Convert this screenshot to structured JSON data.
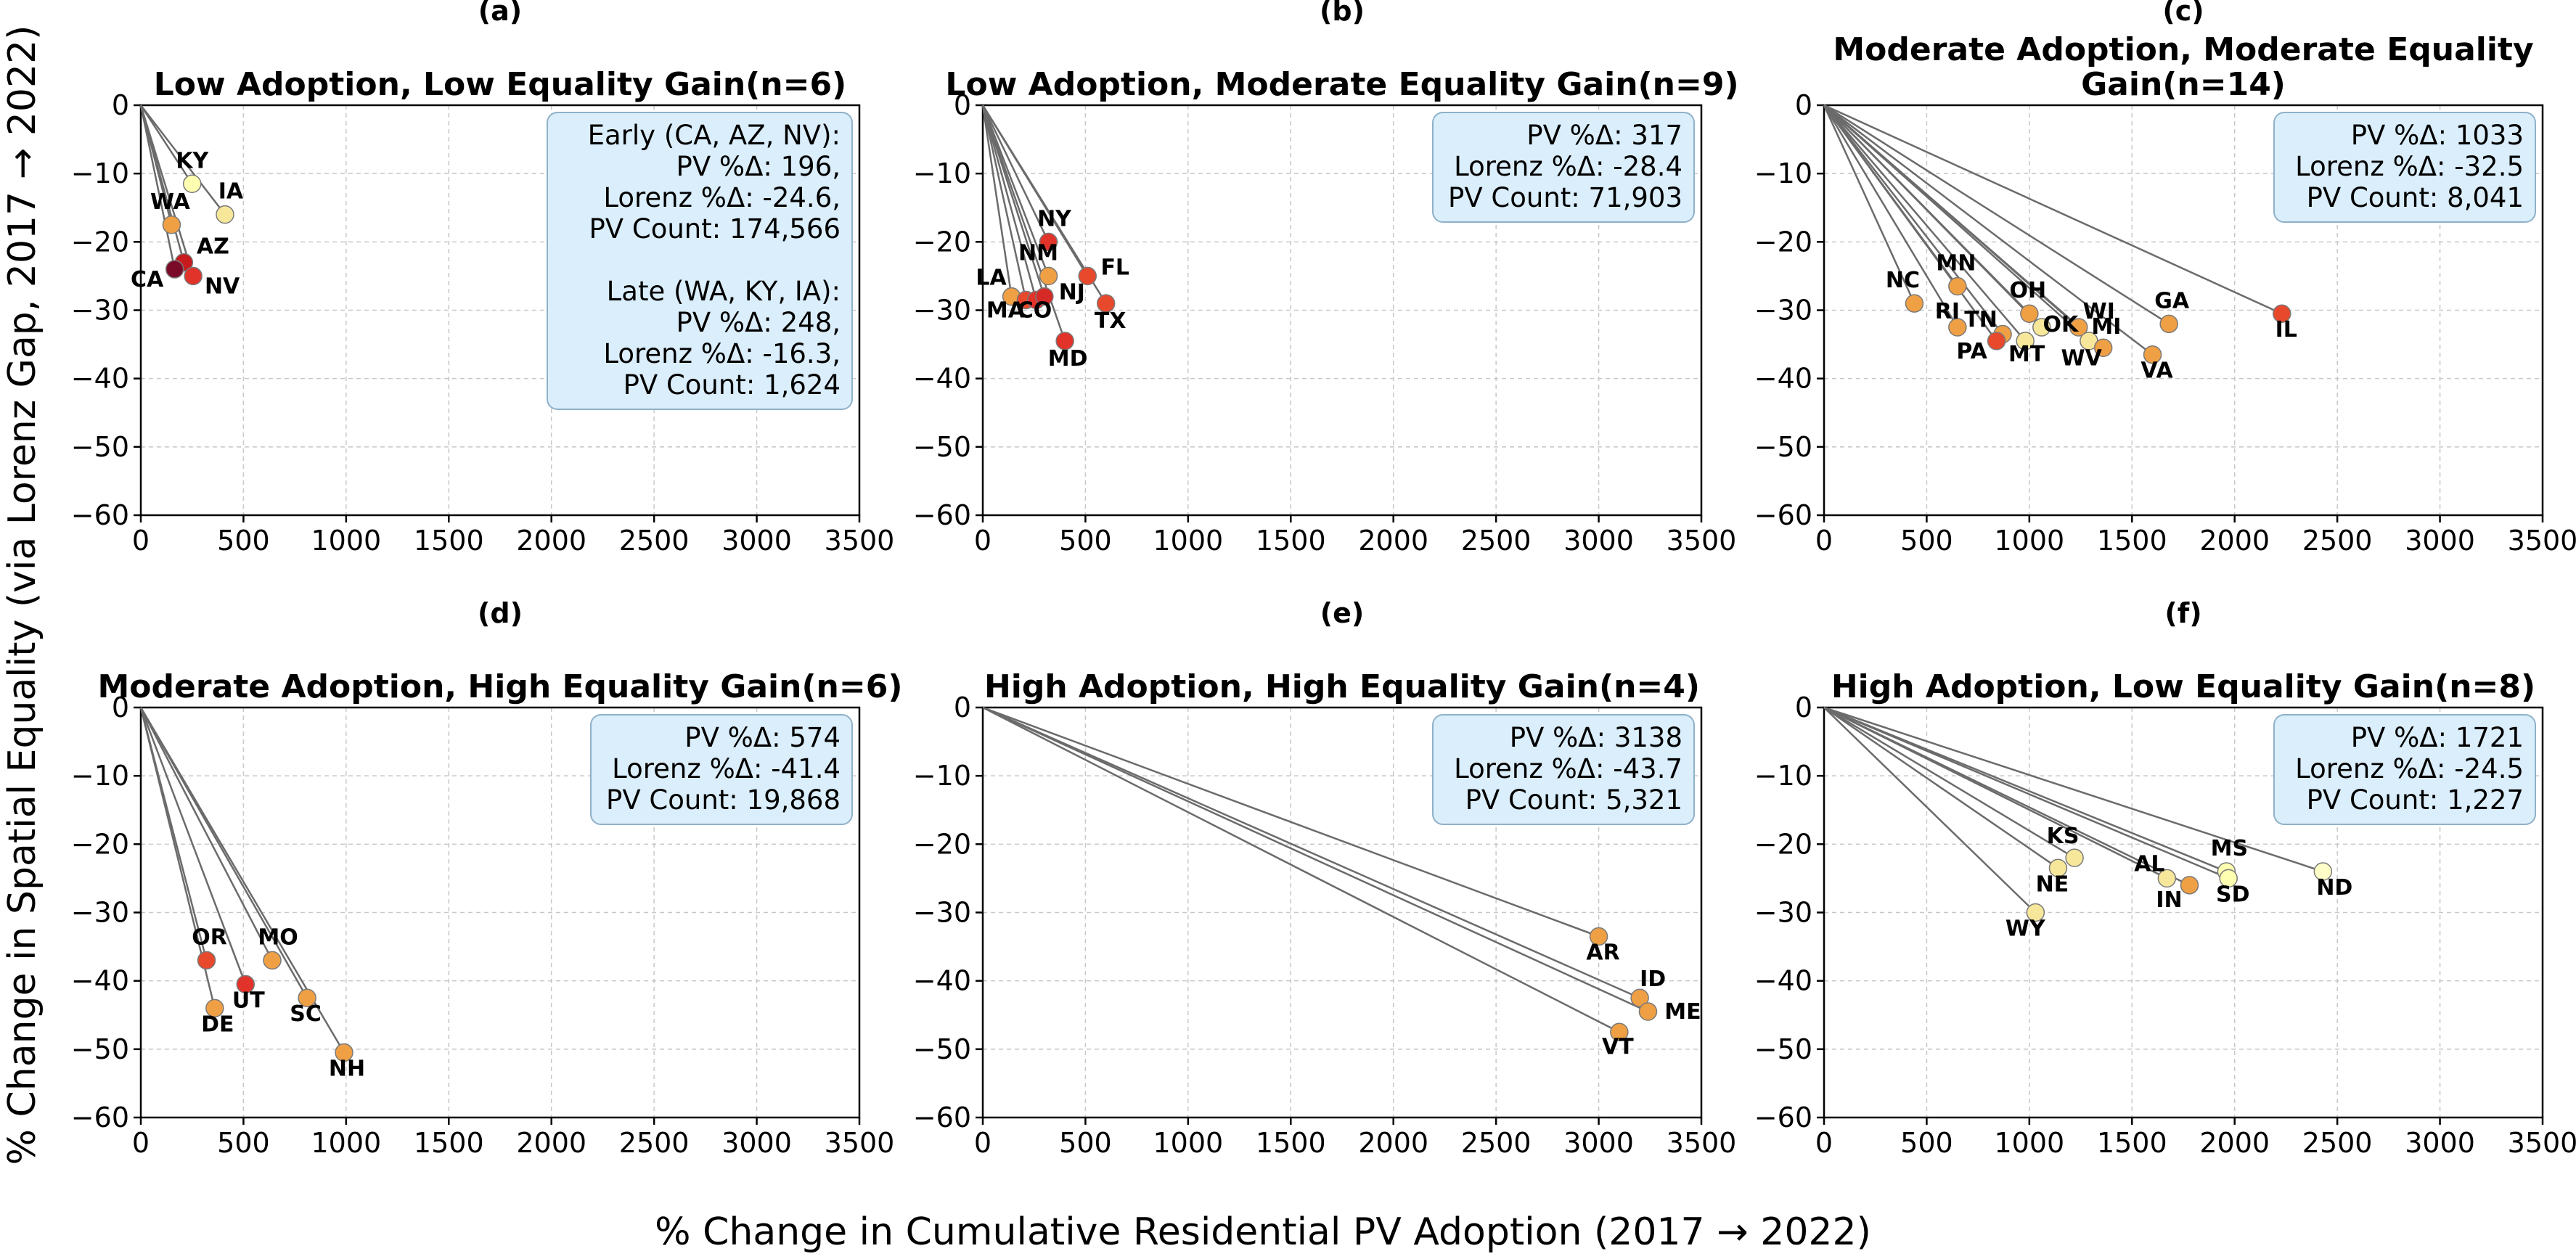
{
  "chart_data": {
    "type": "scatter",
    "xlabel": "% Change in Cumulative Residential PV Adoption (2017 → 2022)",
    "ylabel": "% Change in Spatial Equality (via Lorenz Gap, 2017 → 2022)",
    "xlim": [
      0,
      3500
    ],
    "ylim": [
      -60,
      0
    ],
    "xticks": [
      "0",
      "500",
      "1000",
      "1500",
      "2000",
      "2500",
      "3000",
      "3500"
    ],
    "yticks": [
      "0",
      "−10",
      "−20",
      "−30",
      "−40",
      "−50",
      "−60"
    ],
    "grid": true,
    "colors": {
      "line": "#6b6b6b",
      "box_fill": "#dbeefb",
      "box_edge": "#8fb1c9"
    },
    "panels": [
      {
        "letter": "(a)",
        "title": [
          "Low Adoption, Low Equality Gain(n=6)"
        ],
        "box": [
          "Early (CA, AZ, NV):",
          "PV %Δ: 196,",
          "Lorenz %Δ: -24.6,",
          "PV Count: 174,566",
          "",
          "Late (WA, KY, IA):",
          "PV %Δ: 248,",
          "Lorenz %Δ: -16.3,",
          "PV Count: 1,624"
        ],
        "points": [
          {
            "label": "KY",
            "x": 250,
            "y": -11.5,
            "color": "#ffffb2"
          },
          {
            "label": "IA",
            "x": 410,
            "y": -16.0,
            "color": "#f7e79a"
          },
          {
            "label": "WA",
            "x": 150,
            "y": -17.5,
            "color": "#f0a044"
          },
          {
            "label": "AZ",
            "x": 210,
            "y": -23.0,
            "color": "#c81b1f"
          },
          {
            "label": "CA",
            "x": 165,
            "y": -24.0,
            "color": "#7b0a28"
          },
          {
            "label": "NV",
            "x": 255,
            "y": -25.0,
            "color": "#e2332a"
          }
        ]
      },
      {
        "letter": "(b)",
        "title": [
          "Low Adoption, Moderate Equality Gain(n=9)"
        ],
        "box": [
          "PV %Δ: 317",
          "Lorenz %Δ: -28.4",
          "PV Count: 71,903"
        ],
        "points": [
          {
            "label": "NY",
            "x": 320,
            "y": -20.0,
            "color": "#e2332a"
          },
          {
            "label": "NM",
            "x": 320,
            "y": -25.0,
            "color": "#f0a044"
          },
          {
            "label": "FL",
            "x": 510,
            "y": -25.0,
            "color": "#e8482c"
          },
          {
            "label": "LA",
            "x": 140,
            "y": -28.0,
            "color": "#f0a044"
          },
          {
            "label": "MA",
            "x": 210,
            "y": -28.5,
            "color": "#e8482c"
          },
          {
            "label": "CO",
            "x": 260,
            "y": -28.5,
            "color": "#e2332a"
          },
          {
            "label": "NJ",
            "x": 300,
            "y": -28.0,
            "color": "#d62a27"
          },
          {
            "label": "TX",
            "x": 600,
            "y": -29.0,
            "color": "#e8482c"
          },
          {
            "label": "MD",
            "x": 400,
            "y": -34.5,
            "color": "#e2332a"
          }
        ]
      },
      {
        "letter": "(c)",
        "title": [
          "Moderate Adoption, Moderate Equality",
          "Gain(n=14)"
        ],
        "box": [
          "PV %Δ: 1033",
          "Lorenz %Δ: -32.5",
          "PV Count: 8,041"
        ],
        "points": [
          {
            "label": "MN",
            "x": 650,
            "y": -26.5,
            "color": "#f0a044"
          },
          {
            "label": "NC",
            "x": 440,
            "y": -29.0,
            "color": "#f0a044"
          },
          {
            "label": "RI",
            "x": 650,
            "y": -32.5,
            "color": "#f0a044"
          },
          {
            "label": "OH",
            "x": 1000,
            "y": -30.5,
            "color": "#f0a044"
          },
          {
            "label": "TN",
            "x": 870,
            "y": -33.5,
            "color": "#f0a044"
          },
          {
            "label": "PA",
            "x": 840,
            "y": -34.5,
            "color": "#e8482c"
          },
          {
            "label": "OK",
            "x": 1060,
            "y": -32.5,
            "color": "#f7e79a"
          },
          {
            "label": "MT",
            "x": 980,
            "y": -34.5,
            "color": "#f7e79a"
          },
          {
            "label": "WI",
            "x": 1240,
            "y": -32.5,
            "color": "#f0a044"
          },
          {
            "label": "MI",
            "x": 1290,
            "y": -34.5,
            "color": "#f7e79a"
          },
          {
            "label": "WV",
            "x": 1360,
            "y": -35.5,
            "color": "#f0a044"
          },
          {
            "label": "VA",
            "x": 1600,
            "y": -36.5,
            "color": "#f0a044"
          },
          {
            "label": "GA",
            "x": 1680,
            "y": -32.0,
            "color": "#f0a044"
          },
          {
            "label": "IL",
            "x": 2230,
            "y": -30.5,
            "color": "#e8482c"
          }
        ]
      },
      {
        "letter": "(d)",
        "title": [
          "Moderate Adoption, High Equality Gain(n=6)"
        ],
        "box": [
          "PV %Δ: 574",
          "Lorenz %Δ: -41.4",
          "PV Count: 19,868"
        ],
        "points": [
          {
            "label": "OR",
            "x": 320,
            "y": -37.0,
            "color": "#e8482c"
          },
          {
            "label": "MO",
            "x": 640,
            "y": -37.0,
            "color": "#f0a044"
          },
          {
            "label": "UT",
            "x": 510,
            "y": -40.5,
            "color": "#e2332a"
          },
          {
            "label": "DE",
            "x": 360,
            "y": -44.0,
            "color": "#f0a044"
          },
          {
            "label": "SC",
            "x": 810,
            "y": -42.5,
            "color": "#f0a044"
          },
          {
            "label": "NH",
            "x": 990,
            "y": -50.5,
            "color": "#f0a044"
          }
        ]
      },
      {
        "letter": "(e)",
        "title": [
          "High Adoption, High Equality Gain(n=4)"
        ],
        "box": [
          "PV %Δ: 3138",
          "Lorenz %Δ: -43.7",
          "PV Count: 5,321"
        ],
        "points": [
          {
            "label": "AR",
            "x": 3000,
            "y": -33.5,
            "color": "#f0a044"
          },
          {
            "label": "ID",
            "x": 3200,
            "y": -42.5,
            "color": "#f0a044"
          },
          {
            "label": "ME",
            "x": 3240,
            "y": -44.5,
            "color": "#f0a044"
          },
          {
            "label": "VT",
            "x": 3100,
            "y": -47.5,
            "color": "#f0a044"
          }
        ]
      },
      {
        "letter": "(f)",
        "title": [
          "High Adoption, Low Equality Gain(n=8)"
        ],
        "box": [
          "PV %Δ: 1721",
          "Lorenz %Δ: -24.5",
          "PV Count: 1,227"
        ],
        "points": [
          {
            "label": "KS",
            "x": 1220,
            "y": -22.0,
            "color": "#f7e79a"
          },
          {
            "label": "NE",
            "x": 1140,
            "y": -23.5,
            "color": "#f7e79a"
          },
          {
            "label": "WY",
            "x": 1030,
            "y": -30.0,
            "color": "#f7e79a"
          },
          {
            "label": "AL",
            "x": 1670,
            "y": -25.0,
            "color": "#f7e79a"
          },
          {
            "label": "IN",
            "x": 1780,
            "y": -26.0,
            "color": "#f0a044"
          },
          {
            "label": "MS",
            "x": 1960,
            "y": -24.0,
            "color": "#ffffb2"
          },
          {
            "label": "SD",
            "x": 1970,
            "y": -25.0,
            "color": "#ffffb2"
          },
          {
            "label": "ND",
            "x": 2430,
            "y": -24.0,
            "color": "#ffffc8"
          }
        ]
      }
    ]
  }
}
